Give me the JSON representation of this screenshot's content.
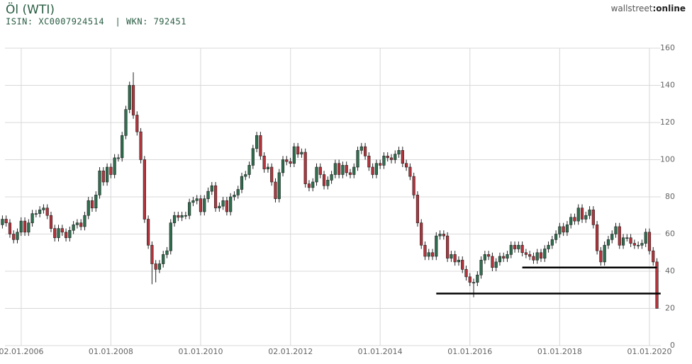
{
  "chart_data": {
    "type": "candlestick",
    "title": "Öl (WTI)",
    "subtitle": "ISIN: XC0007924514  | WKN: 792451",
    "brand": [
      "wallstreet",
      ":online"
    ],
    "up_color": "#2f6f4f",
    "down_color": "#b5343c",
    "grid": true,
    "xlim": [
      "01.08.2005",
      "01.04.2020"
    ],
    "xticks": [
      "02.01.2006",
      "01.01.2008",
      "01.01.2010",
      "02.01.2012",
      "01.01.2014",
      "01.01.2016",
      "01.01.2018",
      "01.01.2020"
    ],
    "ylim": [
      0,
      160
    ],
    "yticks": [
      0,
      20,
      40,
      60,
      80,
      100,
      120,
      140,
      160
    ],
    "levels": [
      {
        "value": 42,
        "from": "01.03.2017",
        "to": "01.03.2020"
      },
      {
        "value": 28,
        "from": "01.04.2015",
        "to": "01.04.2020"
      }
    ],
    "x": [
      "01.08.2005",
      "01.09.2005",
      "01.10.2005",
      "01.11.2005",
      "01.12.2005",
      "01.01.2006",
      "01.02.2006",
      "01.03.2006",
      "01.04.2006",
      "01.05.2006",
      "01.06.2006",
      "01.07.2006",
      "01.08.2006",
      "01.09.2006",
      "01.10.2006",
      "01.11.2006",
      "01.12.2006",
      "01.01.2007",
      "01.02.2007",
      "01.03.2007",
      "01.04.2007",
      "01.05.2007",
      "01.06.2007",
      "01.07.2007",
      "01.08.2007",
      "01.09.2007",
      "01.10.2007",
      "01.11.2007",
      "01.12.2007",
      "01.01.2008",
      "01.02.2008",
      "01.03.2008",
      "01.04.2008",
      "01.05.2008",
      "01.06.2008",
      "01.07.2008",
      "01.08.2008",
      "01.09.2008",
      "01.10.2008",
      "01.11.2008",
      "01.12.2008",
      "01.01.2009",
      "01.02.2009",
      "01.03.2009",
      "01.04.2009",
      "01.05.2009",
      "01.06.2009",
      "01.07.2009",
      "01.08.2009",
      "01.09.2009",
      "01.10.2009",
      "01.11.2009",
      "01.12.2009",
      "01.01.2010",
      "01.02.2010",
      "01.03.2010",
      "01.04.2010",
      "01.05.2010",
      "01.06.2010",
      "01.07.2010",
      "01.08.2010",
      "01.09.2010",
      "01.10.2010",
      "01.11.2010",
      "01.12.2010",
      "01.01.2011",
      "01.02.2011",
      "01.03.2011",
      "01.04.2011",
      "01.05.2011",
      "01.06.2011",
      "01.07.2011",
      "01.08.2011",
      "01.09.2011",
      "01.10.2011",
      "01.11.2011",
      "01.12.2011",
      "01.01.2012",
      "01.02.2012",
      "01.03.2012",
      "01.04.2012",
      "01.05.2012",
      "01.06.2012",
      "01.07.2012",
      "01.08.2012",
      "01.09.2012",
      "01.10.2012",
      "01.11.2012",
      "01.12.2012",
      "01.01.2013",
      "01.02.2013",
      "01.03.2013",
      "01.04.2013",
      "01.05.2013",
      "01.06.2013",
      "01.07.2013",
      "01.08.2013",
      "01.09.2013",
      "01.10.2013",
      "01.11.2013",
      "01.12.2013",
      "01.01.2014",
      "01.02.2014",
      "01.03.2014",
      "01.04.2014",
      "01.05.2014",
      "01.06.2014",
      "01.07.2014",
      "01.08.2014",
      "01.09.2014",
      "01.10.2014",
      "01.11.2014",
      "01.12.2014",
      "01.01.2015",
      "01.02.2015",
      "01.03.2015",
      "01.04.2015",
      "01.05.2015",
      "01.06.2015",
      "01.07.2015",
      "01.08.2015",
      "01.09.2015",
      "01.10.2015",
      "01.11.2015",
      "01.12.2015",
      "01.01.2016",
      "01.02.2016",
      "01.03.2016",
      "01.04.2016",
      "01.05.2016",
      "01.06.2016",
      "01.07.2016",
      "01.08.2016",
      "01.09.2016",
      "01.10.2016",
      "01.11.2016",
      "01.12.2016",
      "01.01.2017",
      "01.02.2017",
      "01.03.2017",
      "01.04.2017",
      "01.05.2017",
      "01.06.2017",
      "01.07.2017",
      "01.08.2017",
      "01.09.2017",
      "01.10.2017",
      "01.11.2017",
      "01.12.2017",
      "01.01.2018",
      "01.02.2018",
      "01.03.2018",
      "01.04.2018",
      "01.05.2018",
      "01.06.2018",
      "01.07.2018",
      "01.08.2018",
      "01.09.2018",
      "01.10.2018",
      "01.11.2018",
      "01.12.2018",
      "01.01.2019",
      "01.02.2019",
      "01.03.2019",
      "01.04.2019",
      "01.05.2019",
      "01.06.2019",
      "01.07.2019",
      "01.08.2019",
      "01.09.2019",
      "01.10.2019",
      "01.11.2019",
      "01.12.2019",
      "01.01.2020",
      "01.02.2020",
      "01.03.2020"
    ],
    "open": [
      65,
      68,
      66,
      60,
      57,
      61,
      67,
      61,
      66,
      71,
      71,
      73,
      74,
      70,
      63,
      58,
      63,
      61,
      58,
      62,
      65,
      66,
      64,
      70,
      78,
      74,
      81,
      94,
      88,
      96,
      92,
      101,
      101,
      113,
      127,
      140,
      124,
      115,
      100,
      68,
      54,
      44,
      41,
      44,
      49,
      51,
      66,
      70,
      69,
      70,
      70,
      77,
      78,
      79,
      72,
      79,
      83,
      86,
      74,
      75,
      78,
      72,
      80,
      81,
      84,
      91,
      92,
      97,
      106,
      113,
      102,
      95,
      96,
      88,
      79,
      93,
      100,
      99,
      98,
      107,
      103,
      104,
      87,
      85,
      88,
      96,
      92,
      86,
      89,
      92,
      98,
      92,
      97,
      93,
      92,
      96,
      105,
      107,
      102,
      96,
      92,
      98,
      97,
      102,
      101,
      100,
      103,
      105,
      98,
      96,
      91,
      81,
      66,
      54,
      48,
      50,
      48,
      59,
      60,
      59,
      47,
      49,
      45,
      46,
      41,
      37,
      34,
      34,
      38,
      46,
      49,
      48,
      42,
      45,
      48,
      47,
      49,
      54,
      52,
      54,
      50,
      49,
      48,
      46,
      50,
      47,
      52,
      54,
      57,
      60,
      64,
      61,
      65,
      69,
      67,
      74,
      68,
      70,
      73,
      65,
      51,
      45,
      54,
      57,
      60,
      64,
      54,
      58,
      58,
      55,
      54,
      54,
      55,
      61,
      51,
      45
    ],
    "high": [
      70,
      70,
      68,
      62,
      63,
      69,
      69,
      68,
      73,
      73,
      75,
      76,
      76,
      72,
      65,
      65,
      65,
      63,
      64,
      67,
      68,
      68,
      72,
      80,
      80,
      83,
      96,
      96,
      98,
      98,
      103,
      103,
      115,
      129,
      142,
      147,
      126,
      117,
      102,
      70,
      56,
      46,
      46,
      51,
      53,
      68,
      72,
      72,
      72,
      72,
      79,
      80,
      81,
      81,
      81,
      85,
      88,
      88,
      77,
      80,
      80,
      82,
      83,
      86,
      93,
      94,
      99,
      108,
      115,
      115,
      104,
      98,
      98,
      90,
      95,
      102,
      102,
      101,
      109,
      109,
      106,
      106,
      89,
      90,
      98,
      98,
      94,
      91,
      94,
      100,
      100,
      99,
      99,
      95,
      98,
      107,
      109,
      109,
      104,
      98,
      100,
      100,
      104,
      104,
      103,
      105,
      107,
      107,
      100,
      98,
      93,
      83,
      68,
      56,
      52,
      52,
      61,
      62,
      62,
      61,
      51,
      51,
      48,
      48,
      43,
      39,
      36,
      40,
      48,
      51,
      51,
      50,
      47,
      50,
      50,
      51,
      56,
      56,
      56,
      56,
      52,
      51,
      50,
      52,
      52,
      54,
      56,
      59,
      62,
      66,
      66,
      67,
      71,
      71,
      76,
      76,
      72,
      75,
      75,
      67,
      53,
      56,
      59,
      62,
      66,
      66,
      60,
      60,
      60,
      57,
      56,
      57,
      63,
      63,
      53,
      47
    ],
    "low": [
      63,
      64,
      58,
      55,
      55,
      59,
      59,
      59,
      64,
      69,
      69,
      71,
      68,
      61,
      56,
      56,
      59,
      56,
      56,
      60,
      63,
      62,
      62,
      68,
      72,
      72,
      79,
      86,
      86,
      90,
      90,
      99,
      99,
      111,
      125,
      122,
      113,
      98,
      66,
      52,
      33,
      34,
      39,
      42,
      47,
      49,
      64,
      67,
      67,
      68,
      68,
      75,
      76,
      70,
      70,
      77,
      81,
      72,
      72,
      73,
      70,
      70,
      78,
      79,
      82,
      89,
      90,
      95,
      104,
      100,
      93,
      93,
      86,
      77,
      77,
      91,
      97,
      96,
      96,
      101,
      101,
      85,
      83,
      83,
      86,
      90,
      84,
      84,
      87,
      90,
      90,
      90,
      91,
      90,
      90,
      94,
      103,
      100,
      94,
      90,
      90,
      95,
      95,
      99,
      98,
      98,
      101,
      96,
      94,
      89,
      79,
      64,
      52,
      46,
      46,
      46,
      46,
      57,
      57,
      45,
      45,
      43,
      43,
      39,
      35,
      32,
      26,
      32,
      36,
      44,
      46,
      40,
      40,
      43,
      45,
      45,
      47,
      50,
      50,
      48,
      47,
      46,
      44,
      44,
      45,
      45,
      50,
      52,
      55,
      58,
      59,
      59,
      63,
      65,
      65,
      66,
      66,
      68,
      63,
      49,
      43,
      43,
      52,
      55,
      58,
      52,
      52,
      56,
      53,
      52,
      52,
      52,
      53,
      49,
      43,
      20
    ],
    "close": [
      68,
      66,
      60,
      57,
      61,
      67,
      61,
      66,
      71,
      71,
      73,
      74,
      70,
      63,
      58,
      63,
      61,
      58,
      62,
      65,
      66,
      64,
      70,
      78,
      74,
      81,
      94,
      88,
      96,
      92,
      101,
      101,
      113,
      127,
      140,
      124,
      115,
      100,
      68,
      54,
      44,
      41,
      44,
      49,
      51,
      66,
      70,
      69,
      70,
      70,
      77,
      78,
      79,
      72,
      79,
      83,
      86,
      74,
      75,
      78,
      72,
      80,
      81,
      84,
      91,
      92,
      97,
      106,
      113,
      102,
      95,
      96,
      88,
      79,
      93,
      100,
      99,
      98,
      107,
      103,
      104,
      87,
      85,
      88,
      96,
      92,
      86,
      89,
      92,
      98,
      92,
      97,
      93,
      92,
      96,
      105,
      107,
      102,
      96,
      92,
      98,
      97,
      102,
      101,
      100,
      103,
      105,
      98,
      96,
      91,
      81,
      66,
      54,
      48,
      50,
      48,
      59,
      60,
      59,
      47,
      49,
      45,
      46,
      41,
      37,
      34,
      34,
      38,
      46,
      49,
      48,
      42,
      45,
      48,
      47,
      49,
      54,
      52,
      54,
      50,
      49,
      48,
      46,
      50,
      47,
      52,
      54,
      57,
      60,
      64,
      61,
      65,
      69,
      67,
      74,
      68,
      70,
      73,
      65,
      51,
      45,
      54,
      57,
      60,
      64,
      54,
      58,
      58,
      55,
      54,
      54,
      55,
      61,
      51,
      45,
      20
    ]
  }
}
